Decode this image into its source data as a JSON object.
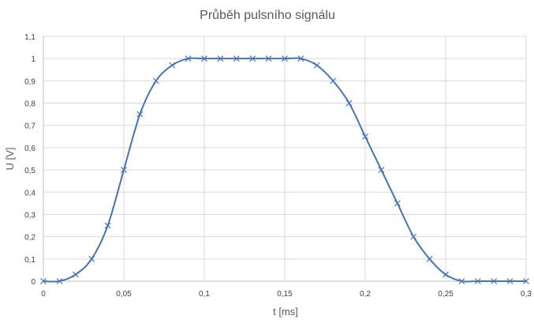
{
  "chart_data": {
    "type": "scatter",
    "title": "Průběh pulsního signálu",
    "xlabel": "t [ms]",
    "ylabel": "U [V]",
    "xlim": [
      0,
      0.3
    ],
    "ylim": [
      0,
      1.1
    ],
    "x_tick_labels": [
      "0",
      "0,05",
      "0,1",
      "0,15",
      "0,2",
      "0,25",
      "0,3"
    ],
    "y_tick_labels": [
      "0",
      "0,1",
      "0,2",
      "0,3",
      "0,4",
      "0,5",
      "0,6",
      "0,7",
      "0,8",
      "0,9",
      "1",
      "1,1"
    ],
    "grid": true,
    "series": [
      {
        "color": "#4472c4",
        "marker": "x",
        "smooth": true,
        "x": [
          0,
          0.01,
          0.02,
          0.03,
          0.04,
          0.05,
          0.06,
          0.07,
          0.08,
          0.09,
          0.1,
          0.11,
          0.12,
          0.13,
          0.14,
          0.15,
          0.16,
          0.17,
          0.18,
          0.19,
          0.2,
          0.21,
          0.22,
          0.23,
          0.24,
          0.25,
          0.26,
          0.27,
          0.28,
          0.29,
          0.3
        ],
        "y": [
          0,
          0,
          0.03,
          0.1,
          0.25,
          0.5,
          0.75,
          0.9,
          0.97,
          1,
          1,
          1,
          1,
          1,
          1,
          1,
          1,
          0.97,
          0.9,
          0.8,
          0.65,
          0.5,
          0.35,
          0.2,
          0.1,
          0.03,
          0,
          0,
          0,
          0,
          0
        ]
      }
    ]
  }
}
